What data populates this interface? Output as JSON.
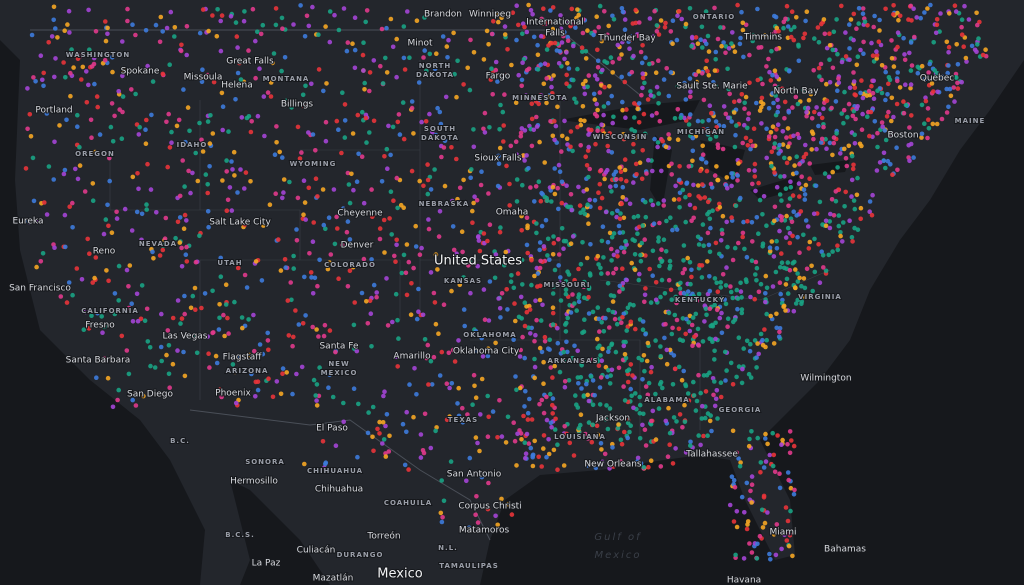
{
  "map": {
    "places": [
      "Brandon",
      "Winnipeg",
      "International",
      "Falls",
      "ONTARIO",
      "Thunder Bay",
      "Timmins",
      "WASHINGTON",
      "Great Falls",
      "Minot",
      "NORTH",
      "DAKOTA",
      "Spokane",
      "Missoula",
      "MONTANA",
      "Helena",
      "Fargo",
      "MINNESOTA",
      "Sault Ste. Marie",
      "North Bay",
      "Quebec",
      "Billings",
      "MAINE",
      "Portland",
      "OREGON",
      "IDAHO",
      "SOUTH",
      "DAKOTA",
      "WISCONSIN",
      "MICHIGAN",
      "Boston",
      "Sioux Falls",
      "WYOMING",
      "Eureka",
      "Salt Lake City",
      "Cheyenne",
      "NEBRASKA",
      "Omaha",
      "NEVADA",
      "Reno",
      "Denver",
      "UTAH",
      "COLORADO",
      "United States",
      "San Francisco",
      "KANSAS",
      "MISSOURI",
      "CALIFORNIA",
      "Fresno",
      "KENTUCKY",
      "VIRGINIA",
      "Las Vegas",
      "OKLAHOMA",
      "Oklahoma City",
      "Santa Fe",
      "Santa Barbara",
      "Flagstaff",
      "Amarillo",
      "ARKANSAS",
      "NEW",
      "MEXICO",
      "ARIZONA",
      "Wilmington",
      "San Diego",
      "Phoenix",
      "TEXAS",
      "Jackson",
      "ALABAMA",
      "GEORGIA",
      "B.C.",
      "El Paso",
      "LOUISIANA",
      "Tallahassee",
      "SONORA",
      "CHIHUAHUA",
      "San Antonio",
      "New Orleans",
      "Hermosillo",
      "Chihuahua",
      "COAHUILA",
      "Corpus Christi",
      "Gulf of",
      "Mexico",
      "Matamoros",
      "Torreón",
      "B.C.S.",
      "Miami",
      "Culiacán",
      "DURANGO",
      "N.L.",
      "Bahamas",
      "La Paz",
      "TAMAULIPAS",
      "Mazatlán",
      "Mexico",
      "Havana"
    ]
  }
}
